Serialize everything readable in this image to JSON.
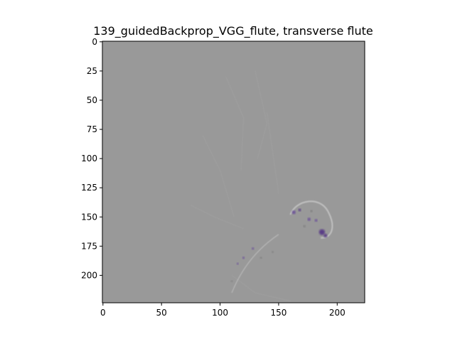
{
  "chart_data": {
    "type": "heatmap",
    "title": "139_guidedBackprop_VGG_flute, transverse flute",
    "xlabel": "",
    "ylabel": "",
    "image_width": 224,
    "image_height": 224,
    "xlim": [
      -0.5,
      223.5
    ],
    "ylim": [
      223.5,
      -0.5
    ],
    "x_ticks": [
      0,
      50,
      100,
      150,
      200
    ],
    "y_ticks": [
      0,
      25,
      50,
      75,
      100,
      125,
      150,
      175,
      200
    ],
    "background_color": "#999999",
    "highlight_colors": [
      "#6b4f99",
      "#5a3c86",
      "#b8b8b8",
      "#7c7c7c"
    ],
    "grid": false,
    "legend": "none"
  }
}
